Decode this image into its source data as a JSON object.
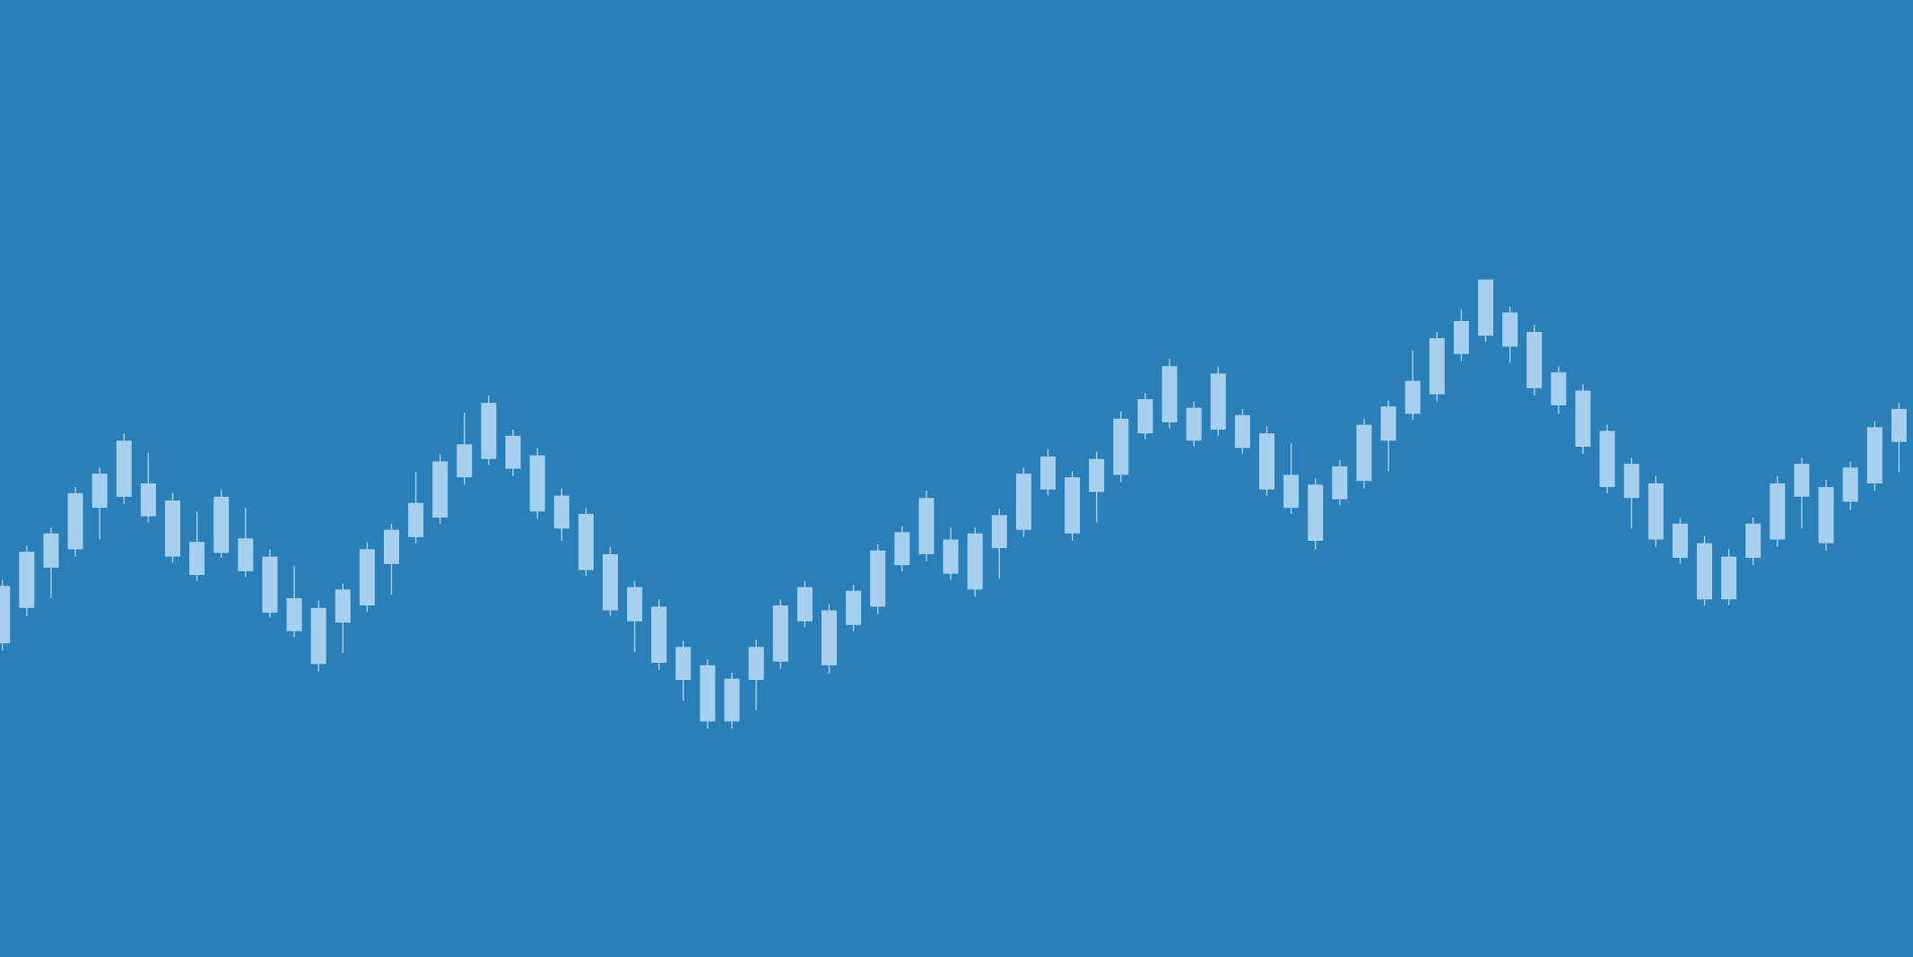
{
  "chart_data": {
    "type": "candlestick",
    "color": "#a6d0ee",
    "ylim": [
      0,
      784
    ],
    "open": [
      257,
      286,
      319,
      334,
      368,
      377,
      361,
      328,
      313,
      331,
      316,
      282,
      267,
      240,
      274,
      288,
      322,
      344,
      360,
      393,
      408,
      400,
      365,
      351,
      317,
      284,
      275,
      241,
      227,
      193,
      193,
      227,
      242,
      275,
      239,
      272,
      287,
      321,
      330,
      314,
      301,
      335,
      350,
      383,
      347,
      381,
      395,
      429,
      438,
      423,
      432,
      417,
      383,
      368,
      341,
      375,
      390,
      423,
      445,
      461,
      494,
      509,
      500,
      466,
      452,
      418,
      385,
      376,
      342,
      327,
      293,
      293,
      327,
      342,
      377,
      339,
      373,
      388,
      422
    ],
    "high": [
      309,
      337,
      352,
      385,
      401,
      429,
      413,
      380,
      365,
      383,
      368,
      334,
      320,
      292,
      306,
      340,
      355,
      397,
      412,
      446,
      460,
      432,
      417,
      384,
      368,
      336,
      308,
      293,
      259,
      244,
      233,
      260,
      293,
      308,
      289,
      305,
      338,
      353,
      382,
      352,
      352,
      367,
      401,
      416,
      398,
      414,
      447,
      462,
      490,
      455,
      484,
      449,
      435,
      421,
      392,
      407,
      441,
      456,
      497,
      512,
      531,
      555,
      533,
      518,
      484,
      469,
      436,
      409,
      394,
      360,
      345,
      334,
      360,
      394,
      409,
      391,
      406,
      439,
      454
    ],
    "low": [
      251,
      279,
      294,
      328,
      342,
      371,
      356,
      323,
      308,
      327,
      311,
      278,
      262,
      234,
      249,
      283,
      297,
      339,
      355,
      387,
      403,
      394,
      359,
      341,
      312,
      279,
      250,
      235,
      210,
      187,
      187,
      202,
      236,
      270,
      232,
      267,
      281,
      316,
      324,
      309,
      295,
      310,
      344,
      378,
      341,
      356,
      389,
      424,
      433,
      418,
      427,
      412,
      378,
      363,
      334,
      370,
      384,
      398,
      440,
      455,
      488,
      504,
      487,
      460,
      445,
      412,
      380,
      351,
      336,
      322,
      288,
      288,
      321,
      336,
      351,
      333,
      366,
      382,
      397
    ],
    "close": [
      304,
      332,
      347,
      380,
      396,
      423,
      388,
      374,
      340,
      377,
      343,
      328,
      294,
      286,
      301,
      334,
      350,
      372,
      406,
      420,
      454,
      427,
      411,
      378,
      363,
      330,
      303,
      287,
      254,
      239,
      228,
      254,
      288,
      303,
      284,
      300,
      333,
      348,
      376,
      342,
      347,
      362,
      396,
      410,
      393,
      408,
      441,
      457,
      484,
      450,
      478,
      444,
      429,
      395,
      387,
      402,
      436,
      451,
      472,
      507,
      521,
      555,
      528,
      512,
      479,
      464,
      431,
      404,
      388,
      355,
      339,
      328,
      355,
      388,
      404,
      385,
      401,
      434,
      449
    ]
  }
}
